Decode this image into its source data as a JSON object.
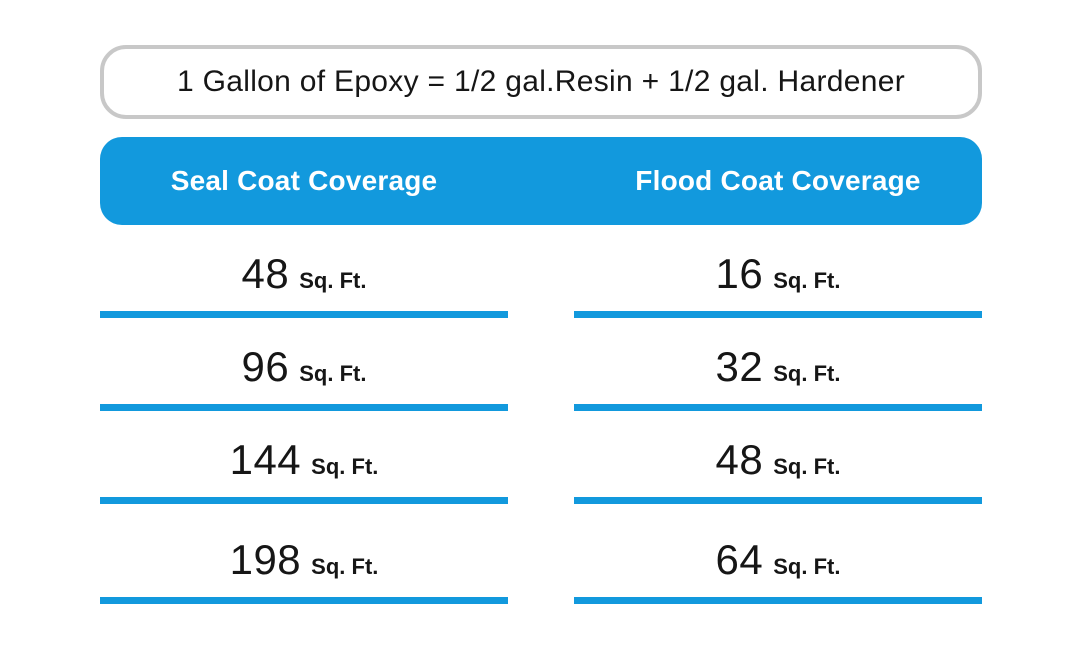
{
  "banner": {
    "text": "1 Gallon of Epoxy = 1/2 gal.Resin + 1/2 gal. Hardener"
  },
  "table": {
    "headers": [
      {
        "label": "Seal Coat Coverage"
      },
      {
        "label": "Flood Coat Coverage"
      }
    ],
    "rows": [
      {
        "seal": {
          "number": "48",
          "unit": "Sq. Ft."
        },
        "flood": {
          "number": "16",
          "unit": "Sq. Ft."
        }
      },
      {
        "seal": {
          "number": "96",
          "unit": "Sq. Ft."
        },
        "flood": {
          "number": "32",
          "unit": "Sq. Ft."
        }
      },
      {
        "seal": {
          "number": "144",
          "unit": "Sq. Ft."
        },
        "flood": {
          "number": "48",
          "unit": "Sq. Ft."
        }
      },
      {
        "seal": {
          "number": "198",
          "unit": "Sq. Ft."
        },
        "flood": {
          "number": "64",
          "unit": "Sq. Ft."
        }
      }
    ]
  },
  "colors": {
    "accent_blue": "#1299dd",
    "border_gray": "#c8c8c8",
    "text_black": "#161616",
    "header_text": "#ffffff"
  },
  "chart_data": {
    "type": "table",
    "title": "1 Gallon of Epoxy = 1/2 gal.Resin + 1/2 gal. Hardener",
    "columns": [
      "Seal Coat Coverage",
      "Flood Coat Coverage"
    ],
    "rows": [
      [
        "48 Sq. Ft.",
        "16 Sq. Ft."
      ],
      [
        "96 Sq. Ft.",
        "32 Sq. Ft."
      ],
      [
        "144 Sq. Ft.",
        "48 Sq. Ft."
      ],
      [
        "198 Sq. Ft.",
        "64 Sq. Ft."
      ]
    ],
    "units": "Sq. Ft.",
    "seal_coat_sqft": [
      48,
      96,
      144,
      198
    ],
    "flood_coat_sqft": [
      16,
      32,
      48,
      64
    ]
  }
}
